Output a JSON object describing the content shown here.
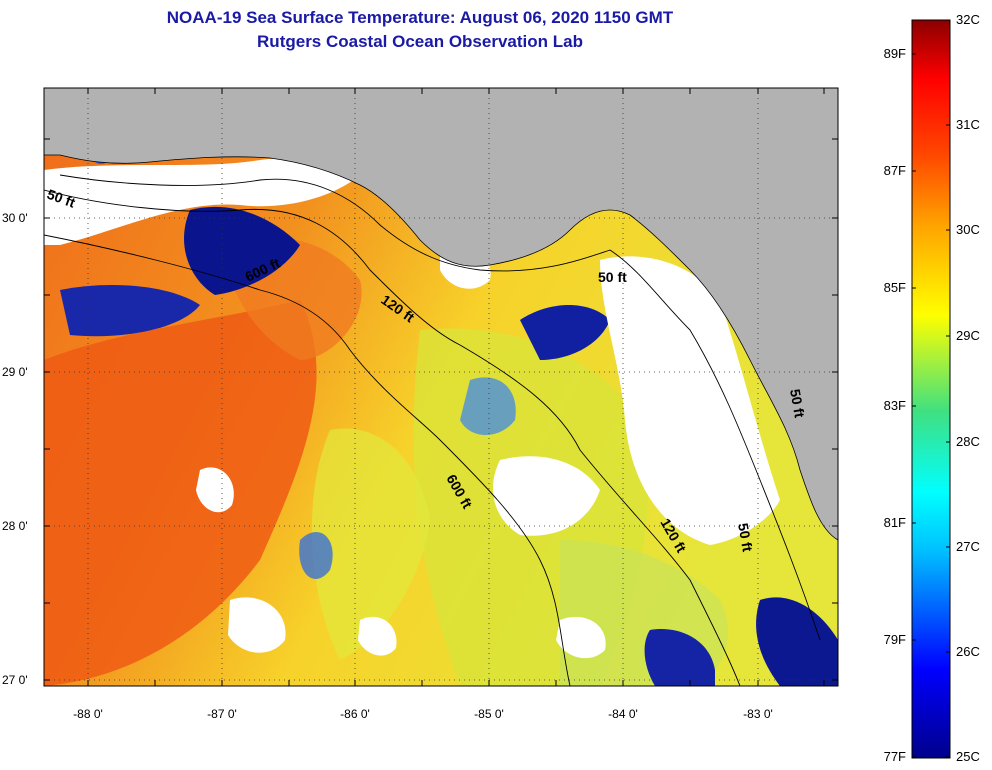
{
  "title_line1": "NOAA-19 Sea Surface Temperature:  August 06, 2020 1150 GMT",
  "title_line2": "Rutgers Coastal Ocean Observation Lab",
  "colors": {
    "land": "#b2b2b2",
    "cloud": "#ffffff",
    "title": "#1a1aa6"
  },
  "map": {
    "lat_labels": [
      "30 0'",
      "29 0'",
      "28 0'",
      "27 0'"
    ],
    "lon_labels": [
      "-88 0'",
      "-87 0'",
      "-86 0'",
      "-85 0'",
      "-84 0'",
      "-83 0'"
    ],
    "contour_labels": [
      "50 ft",
      "600 ft",
      "120 ft",
      "50 ft",
      "600 ft",
      "120 ft",
      "50 ft",
      "50 ft"
    ]
  },
  "colorbar": {
    "celsius": [
      "32C",
      "31C",
      "30C",
      "29C",
      "28C",
      "27C",
      "26C",
      "25C"
    ],
    "fahrenheit": [
      "89F",
      "87F",
      "85F",
      "83F",
      "81F",
      "79F",
      "77F"
    ],
    "range_c": [
      25,
      32
    ],
    "stops": [
      "#00008b",
      "#0000ff",
      "#00bfff",
      "#00ffff",
      "#40e080",
      "#ffff00",
      "#ffa500",
      "#ff4500",
      "#ff0000",
      "#8b0000"
    ]
  }
}
